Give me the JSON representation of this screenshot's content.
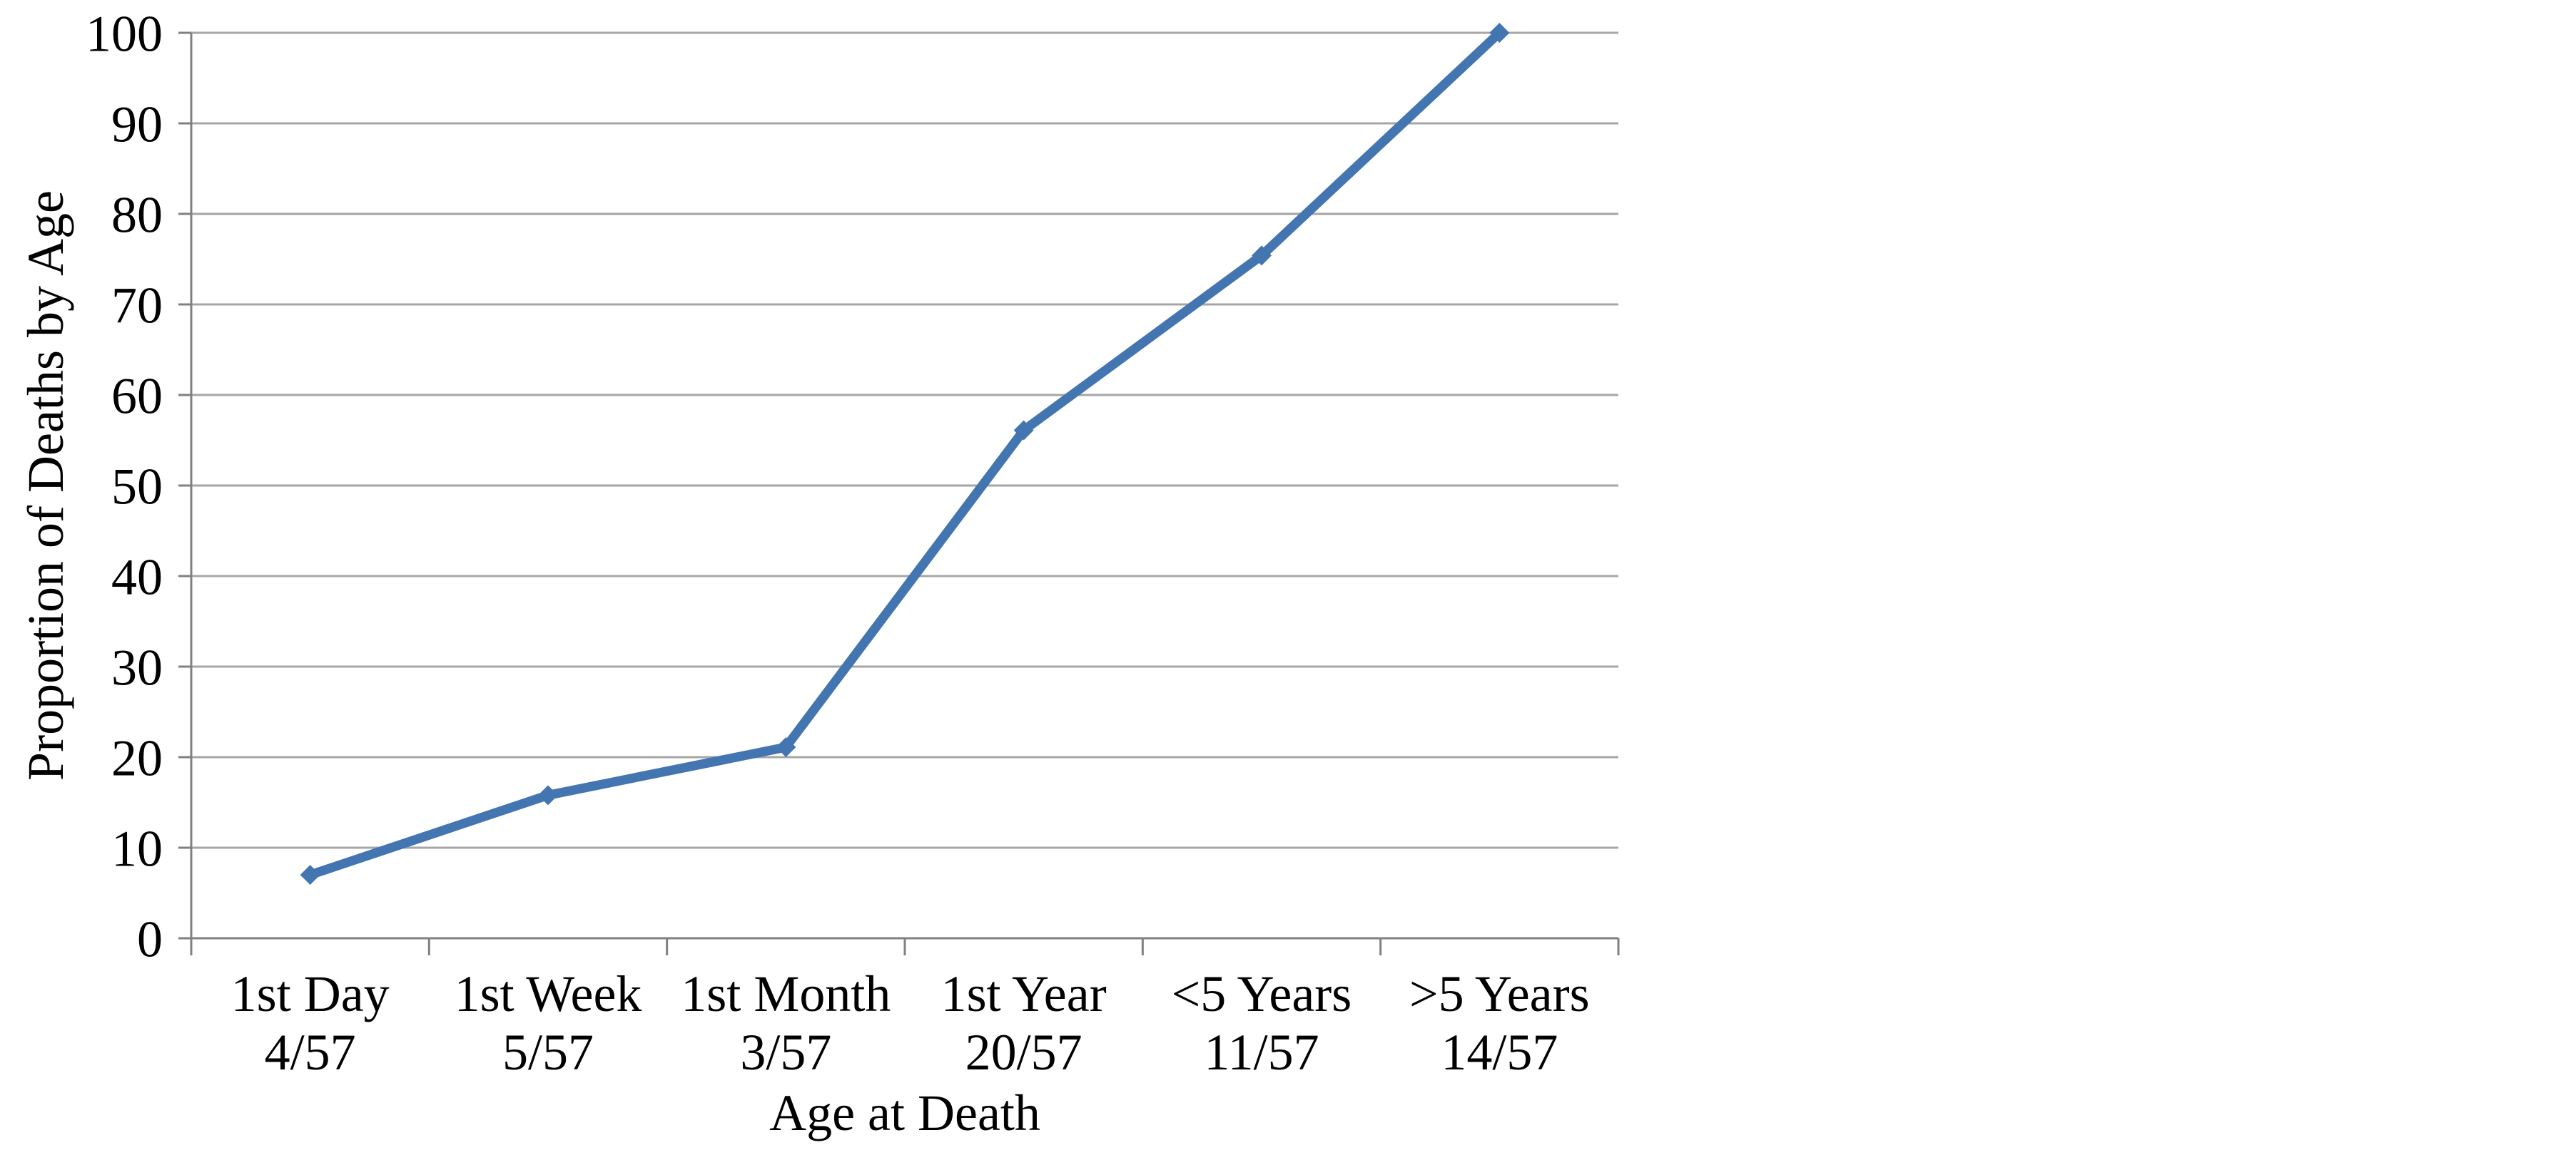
{
  "chart_data": {
    "type": "line",
    "title": "",
    "categories": [
      "1st Day",
      "1st Week",
      "1st Month",
      "1st Year",
      "<5 Years",
      ">5 Years"
    ],
    "category_counts": [
      "4/57",
      "5/57",
      "3/57",
      "20/57",
      "11/57",
      "14/57"
    ],
    "values": [
      7.0,
      15.8,
      21.1,
      56.1,
      75.4,
      100.0
    ],
    "xlabel": "Age at Death",
    "ylabel": "Proportion of Deaths by Age",
    "ylim": [
      0,
      100
    ],
    "y_ticks": [
      0,
      10,
      20,
      30,
      40,
      50,
      60,
      70,
      80,
      90,
      100
    ],
    "grid": "horizontal",
    "legend": "none",
    "style": {
      "line_color": "#4376b1",
      "marker": "diamond",
      "marker_color": "#4376b1",
      "gridline_color": "#a6a6a6",
      "axis_color": "#808080",
      "text_color": "#000000",
      "background": "#ffffff"
    }
  }
}
